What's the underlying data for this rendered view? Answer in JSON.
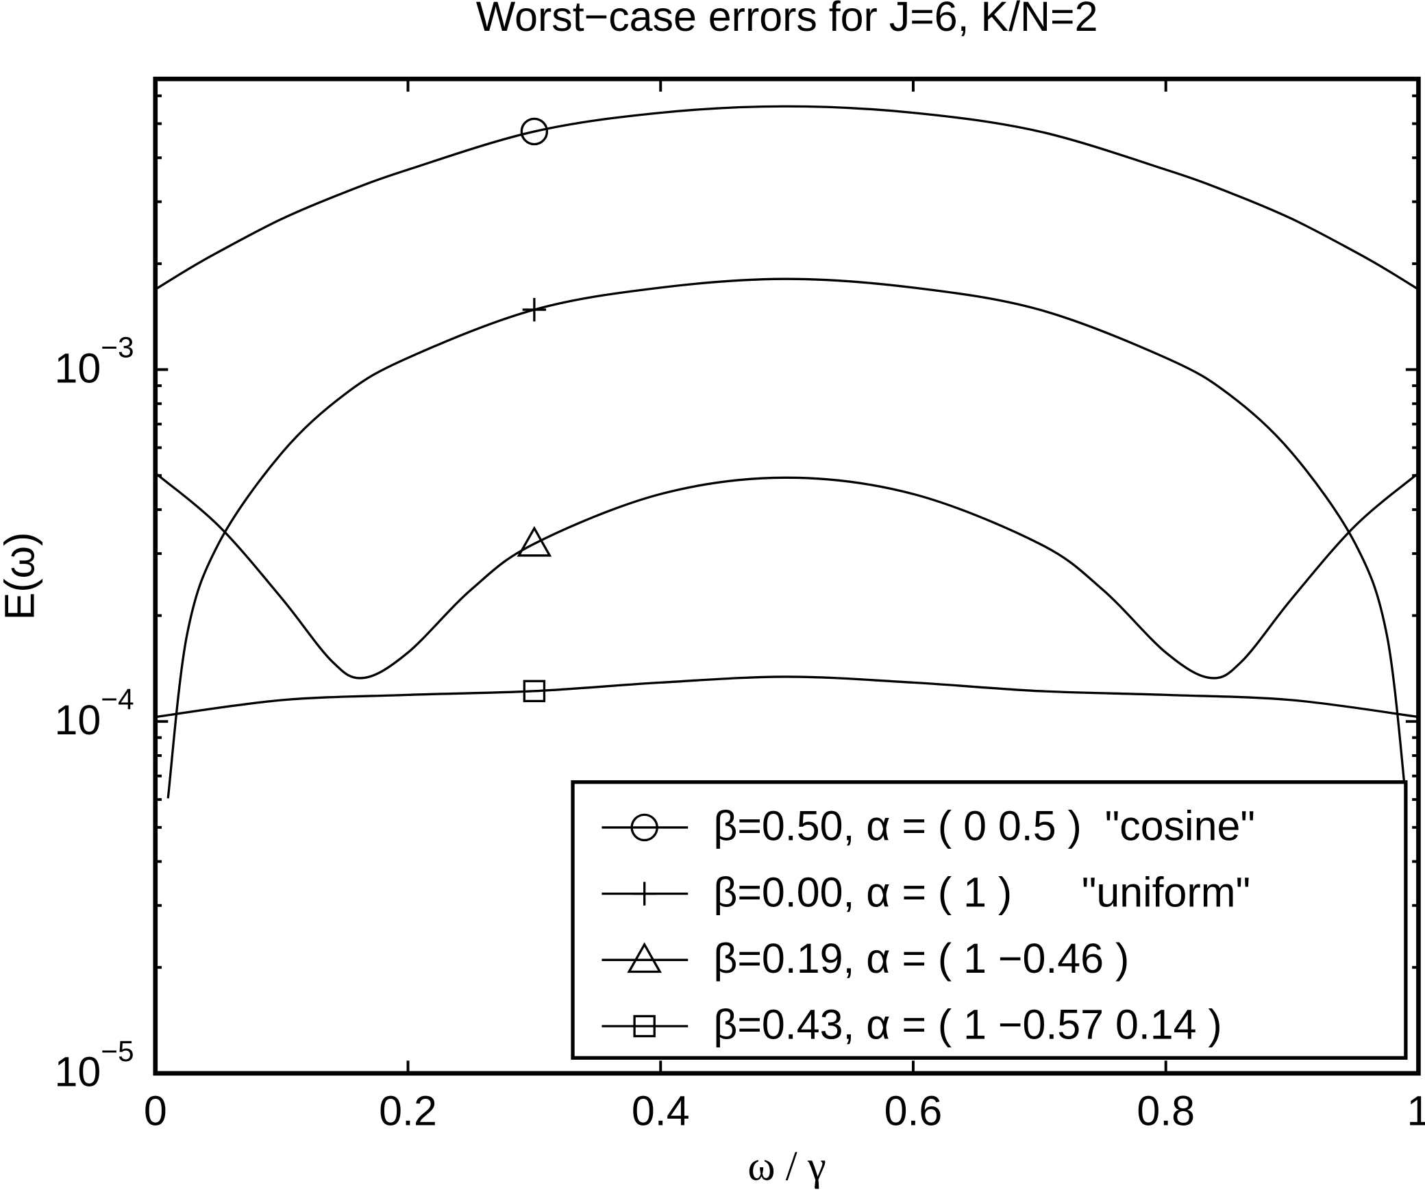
{
  "chart_data": {
    "type": "line",
    "title": "Worst−case errors for J=6, K/N=2",
    "xlabel": "ω / γ",
    "ylabel": "E(ω)",
    "xlim": [
      0,
      1
    ],
    "xticks": [
      0,
      0.2,
      0.4,
      0.6,
      0.8,
      1
    ],
    "ylim": [
      1e-05,
      0.0067
    ],
    "yscale": "log",
    "yticks": [
      {
        "value": 1e-05,
        "label": "10",
        "exponent": "−5"
      },
      {
        "value": 0.0001,
        "label": "10",
        "exponent": "−4"
      },
      {
        "value": 0.001,
        "label": "10",
        "exponent": "−3"
      }
    ],
    "yminorticks": [
      2e-05,
      3e-05,
      4e-05,
      5e-05,
      6e-05,
      7e-05,
      8e-05,
      9e-05,
      0.0002,
      0.0003,
      0.0004,
      0.0005,
      0.0006,
      0.0007,
      0.0008,
      0.0009,
      0.002,
      0.003,
      0.004,
      0.005,
      0.006
    ],
    "grid": false,
    "legend": "lower right",
    "series": [
      {
        "name": "β=0.50, α = ( 0 0.5 )  \"cosine\"",
        "color": "#000000",
        "marker": "circle",
        "markevery": 6,
        "x": [
          0,
          0.025,
          0.05,
          0.1,
          0.15,
          0.2,
          0.3,
          0.4,
          0.5,
          0.6,
          0.7,
          0.8,
          0.85,
          0.9,
          0.95,
          0.975,
          1
        ],
        "values": [
          0.00169,
          0.00192,
          0.00216,
          0.00268,
          0.00319,
          0.0037,
          0.00475,
          0.00537,
          0.0056,
          0.00537,
          0.00475,
          0.0037,
          0.00319,
          0.00268,
          0.00216,
          0.00192,
          0.00169
        ]
      },
      {
        "name": "β=0.00, α = ( 1 )      \"uniform\"",
        "color": "#000000",
        "marker": "plus",
        "markevery": 6,
        "x": [
          0.01,
          0.025,
          0.05,
          0.1,
          0.15,
          0.2,
          0.3,
          0.4,
          0.5,
          0.6,
          0.7,
          0.8,
          0.85,
          0.9,
          0.95,
          0.975,
          0.99
        ],
        "values": [
          6.05e-05,
          0.000176,
          0.00032,
          0.000579,
          0.000851,
          0.00108,
          0.00148,
          0.00171,
          0.00181,
          0.00171,
          0.00148,
          0.00108,
          0.000851,
          0.000579,
          0.00032,
          0.000176,
          6.05e-05
        ]
      },
      {
        "name": "β=0.19, α = ( 1 −0.46 )",
        "color": "#000000",
        "marker": "triangle",
        "markevery": 7,
        "x": [
          0,
          0.05,
          0.1,
          0.14,
          0.165,
          0.2,
          0.25,
          0.3,
          0.4,
          0.5,
          0.6,
          0.7,
          0.75,
          0.8,
          0.835,
          0.86,
          0.9,
          0.95,
          1
        ],
        "values": [
          0.000508,
          0.00036,
          0.000224,
          0.000148,
          0.000133,
          0.000157,
          0.000237,
          0.00032,
          0.000443,
          0.000493,
          0.000443,
          0.00032,
          0.000237,
          0.000157,
          0.000133,
          0.000148,
          0.000224,
          0.00036,
          0.000508
        ]
      },
      {
        "name": "β=0.43, α = ( 1 −0.57 0.14 )",
        "color": "#000000",
        "marker": "square",
        "markevery": 3,
        "x": [
          0,
          0.1,
          0.2,
          0.3,
          0.4,
          0.5,
          0.6,
          0.7,
          0.8,
          0.9,
          1
        ],
        "values": [
          0.000103,
          0.000115,
          0.000119,
          0.000122,
          0.000129,
          0.000134,
          0.000129,
          0.000122,
          0.000119,
          0.000115,
          0.000103
        ]
      }
    ]
  }
}
